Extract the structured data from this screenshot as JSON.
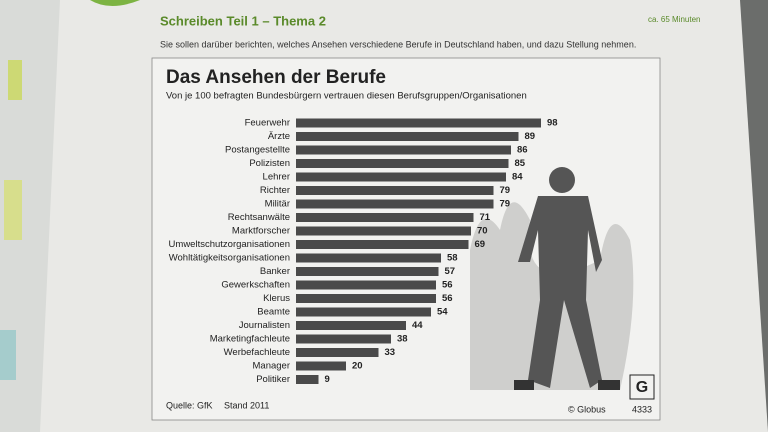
{
  "page": {
    "heading": "Schreiben Teil 1 – Thema 2",
    "time": "ca. 65 Minuten",
    "instruction": "Sie sollen darüber berichten, welches Ansehen verschiedene Berufe in Deutschland haben, und dazu Stellung nehmen."
  },
  "chart_data": {
    "type": "bar",
    "orientation": "horizontal",
    "title": "Das Ansehen der Berufe",
    "subtitle": "Von je 100 befragten Bundesbürgern vertrauen diesen Berufsgruppen/Organisationen",
    "categories": [
      "Feuerwehr",
      "Ärzte",
      "Postangestellte",
      "Polizisten",
      "Lehrer",
      "Richter",
      "Militär",
      "Rechtsanwälte",
      "Marktforscher",
      "Umweltschutzorganisationen",
      "Wohltätigkeitsorganisationen",
      "Banker",
      "Gewerkschaften",
      "Klerus",
      "Beamte",
      "Journalisten",
      "Marketingfachleute",
      "Werbefachleute",
      "Manager",
      "Politiker"
    ],
    "values": [
      98,
      89,
      86,
      85,
      84,
      79,
      79,
      71,
      70,
      69,
      58,
      57,
      56,
      56,
      54,
      44,
      38,
      33,
      20,
      9
    ],
    "color": "#4a4a4a",
    "source": "Quelle: GfK",
    "date": "Stand 2011",
    "publisher": "© Globus",
    "number": "4333"
  }
}
